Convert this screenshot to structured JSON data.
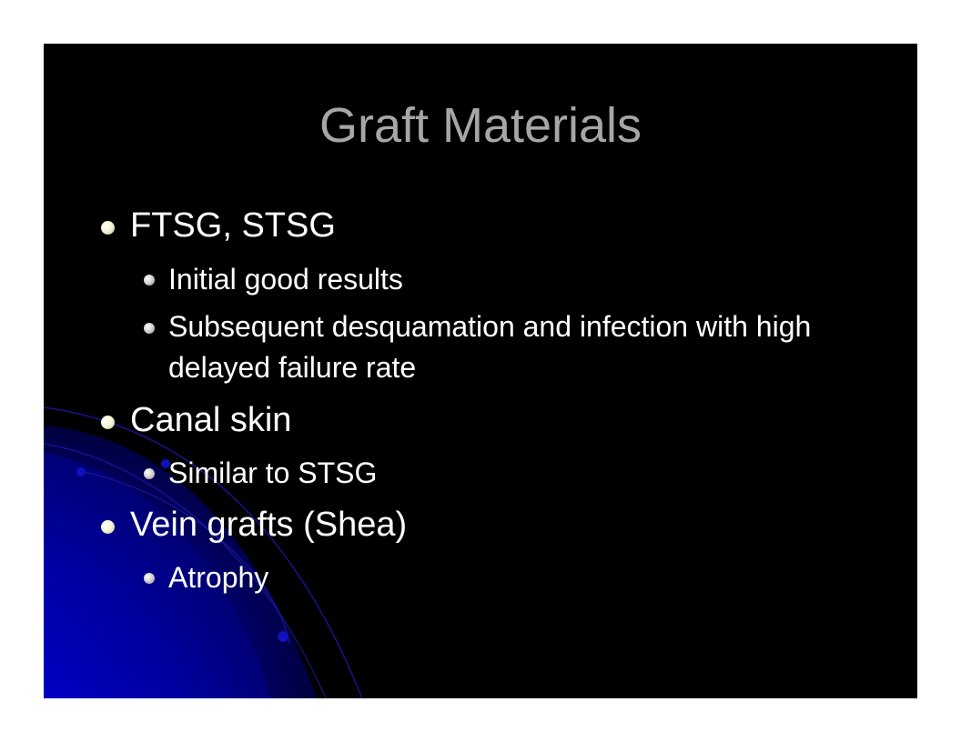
{
  "slide": {
    "title": "Graft Materials",
    "bullets": [
      {
        "text": "FTSG, STSG",
        "subitems": [
          "Initial good results",
          "Subsequent desquamation and infection with high delayed failure rate"
        ]
      },
      {
        "text": "Canal skin",
        "subitems": [
          "Similar to STSG"
        ]
      },
      {
        "text": "Vein grafts (Shea)",
        "subitems": [
          "Atrophy"
        ]
      }
    ]
  },
  "colors": {
    "slide_background": "#000000",
    "title_text": "#a6a6a6",
    "body_text": "#ffffff",
    "accent_blue": "#0000aa"
  }
}
